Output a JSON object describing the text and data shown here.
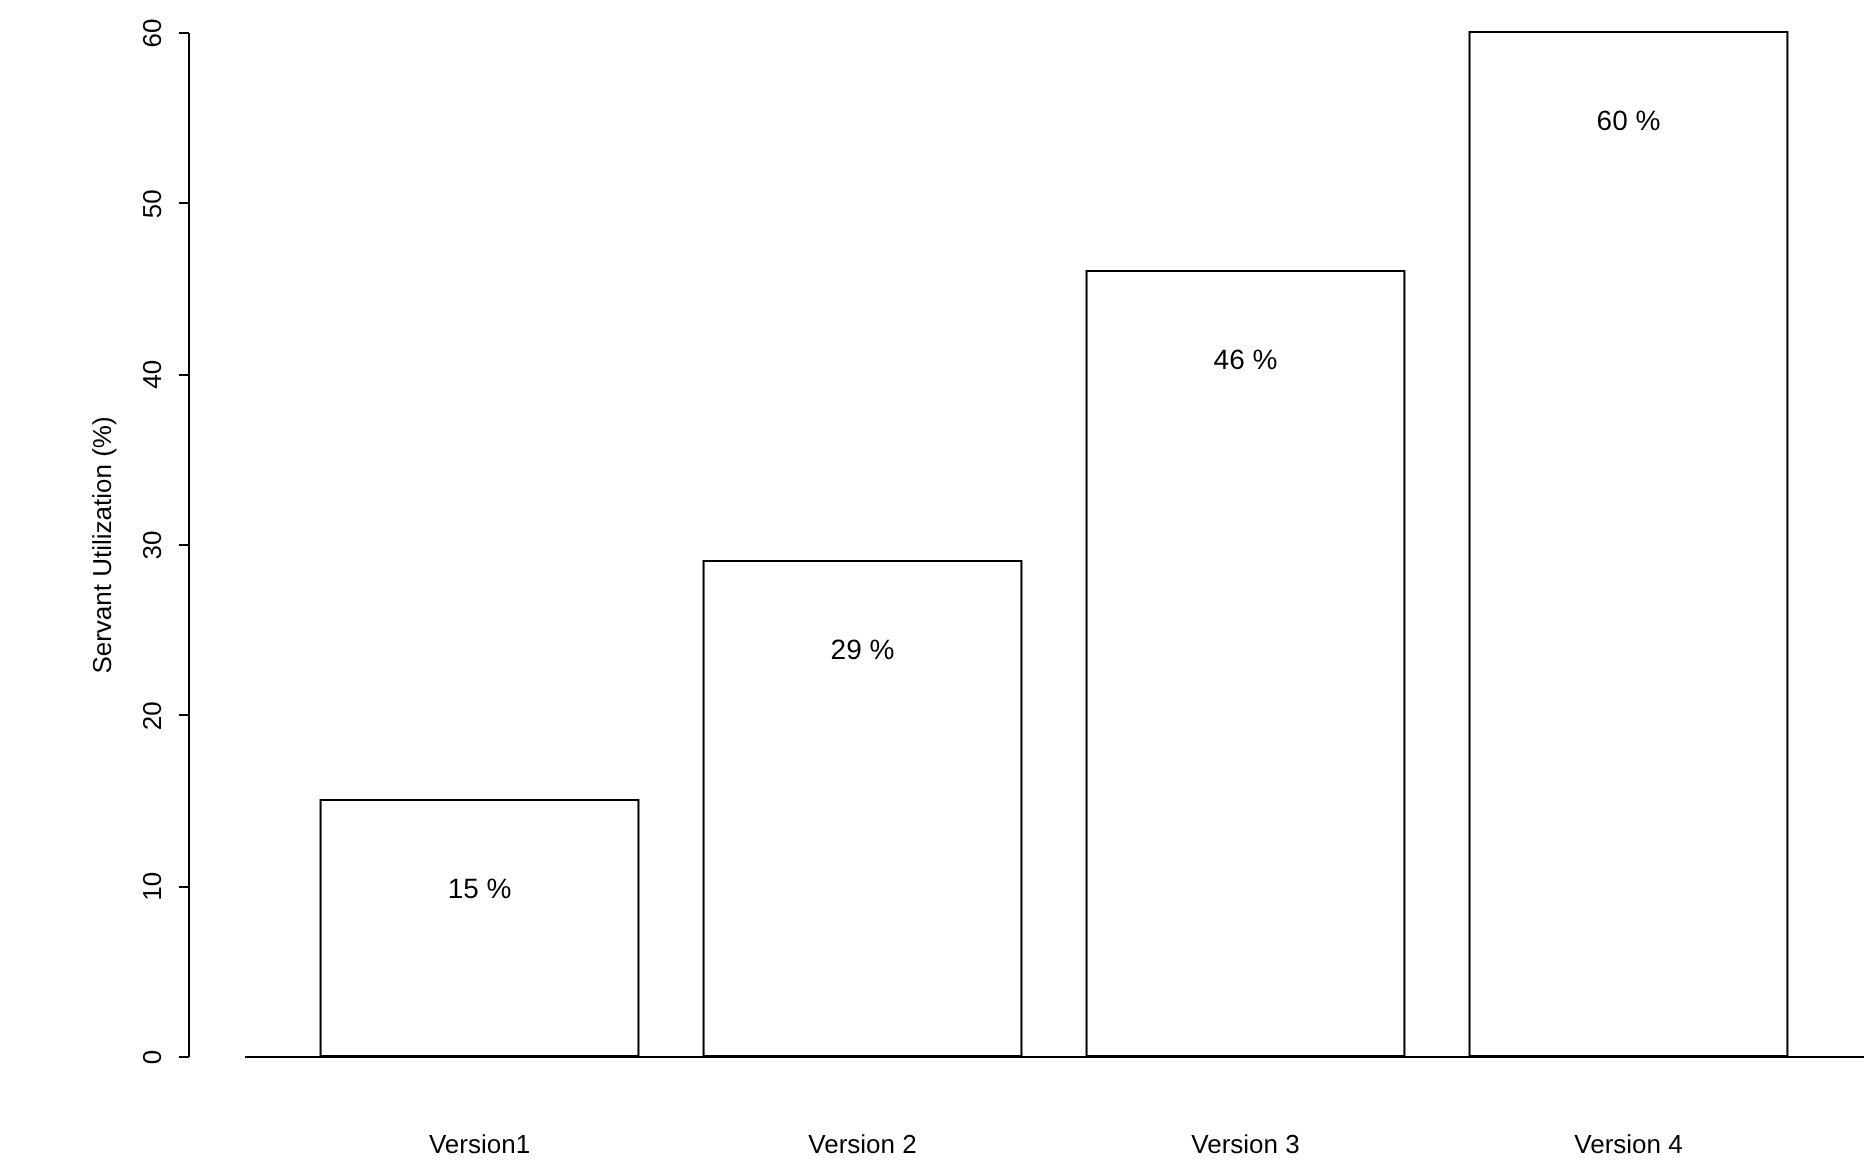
{
  "chart_data": {
    "type": "bar",
    "ylabel": "Servant Utilization (%)",
    "categories": [
      "Version1",
      "Version 2",
      "Version 3",
      "Version 4"
    ],
    "values": [
      15,
      29,
      46,
      60
    ],
    "value_labels": [
      "15 %",
      "29 %",
      "46 %",
      "60 %"
    ],
    "color": "#ffffff",
    "ylim": [
      0,
      60
    ],
    "yticks": [
      0,
      10,
      20,
      30,
      40,
      50,
      60
    ],
    "grid": false
  }
}
